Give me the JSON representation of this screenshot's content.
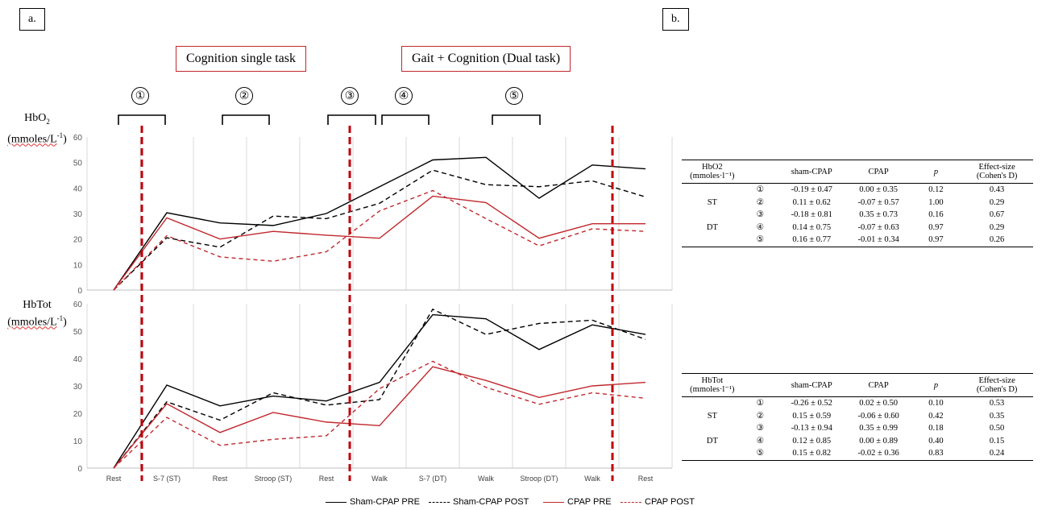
{
  "panels": {
    "a": "a.",
    "b": "b."
  },
  "boxes": {
    "single": "Cognition single task",
    "dual": "Gait + Cognition (Dual task)"
  },
  "phase_markers": [
    "①",
    "②",
    "③",
    "④",
    "⑤"
  ],
  "y_labels": {
    "top": {
      "line1": "HbO",
      "sub": "2",
      "line2": "(mmoles/L",
      "sup": "-1",
      "close": ")"
    },
    "bottom": {
      "line1": "HbTot",
      "line2": "(mmoles/L",
      "sup": "-1",
      "close": ")"
    }
  },
  "colors": {
    "sham": "#000000",
    "cpap": "#c0282d",
    "divider": "#c0000b",
    "grid": "#d9d9d9"
  },
  "chart_data": [
    {
      "type": "line",
      "categories": [
        "Rest",
        "S-7 (ST)",
        "Rest",
        "Stroop (ST)",
        "Rest",
        "Walk",
        "S-7 (DT)",
        "Walk",
        "Stroop (DT)",
        "Walk",
        "Rest"
      ],
      "ylim": [
        0,
        60
      ],
      "yticks": [
        0,
        10,
        20,
        30,
        40,
        50,
        60
      ],
      "series": [
        {
          "name": "Sham-CPAP PRE",
          "values": [
            0,
            30.3,
            26.3,
            25.3,
            30,
            40.5,
            51,
            52,
            36,
            49,
            47.5
          ]
        },
        {
          "name": "Sham-CPAP POST",
          "values": [
            0,
            20.5,
            16.8,
            29,
            28,
            34,
            47,
            41.3,
            40.5,
            42.8,
            36.5
          ]
        },
        {
          "name": "CPAP PRE",
          "values": [
            0,
            28.3,
            20,
            23,
            21.5,
            20.3,
            36.8,
            34.3,
            20.3,
            26,
            26
          ]
        },
        {
          "name": "CPAP POST",
          "values": [
            0,
            21.3,
            13,
            11.3,
            15,
            31,
            39,
            28,
            17.3,
            24,
            23
          ]
        }
      ]
    },
    {
      "type": "line",
      "categories": [
        "Rest",
        "S-7 (ST)",
        "Rest",
        "Stroop (ST)",
        "Rest",
        "Walk",
        "S-7 (DT)",
        "Walk",
        "Stroop (DT)",
        "Walk",
        "Rest"
      ],
      "ylim": [
        0,
        60
      ],
      "yticks": [
        0,
        10,
        20,
        30,
        40,
        50,
        60
      ],
      "series": [
        {
          "name": "Sham-CPAP PRE",
          "values": [
            0,
            30.3,
            22.7,
            26.3,
            24.5,
            31.3,
            56,
            54.5,
            43.3,
            52.3,
            48.8
          ]
        },
        {
          "name": "Sham-CPAP POST",
          "values": [
            0,
            24.2,
            17.5,
            27.5,
            23,
            25,
            58,
            48.8,
            52.8,
            54,
            47
          ]
        },
        {
          "name": "CPAP PRE",
          "values": [
            0,
            23.5,
            13,
            20.3,
            16.8,
            15.5,
            37,
            32,
            25.8,
            30,
            31.3
          ]
        },
        {
          "name": "CPAP POST",
          "values": [
            0,
            18.5,
            8.3,
            10.5,
            11.8,
            29,
            39,
            29.5,
            23.3,
            27.5,
            25.5
          ]
        }
      ]
    }
  ],
  "legend": [
    "Sham-CPAP PRE",
    "Sham-CPAP POST",
    "CPAP PRE",
    "CPAP POST"
  ],
  "tables": [
    {
      "header": [
        "HbO2",
        "(mmoles·l⁻¹)",
        "sham-CPAP",
        "CPAP",
        "p",
        "Effect-size",
        "(Cohen's D)"
      ],
      "rows": [
        {
          "group": "",
          "marker": "①",
          "sham": "-0.19 ± 0.47",
          "cpap": "0.00 ± 0.35",
          "p": "0.12",
          "es": "0.43"
        },
        {
          "group": "ST",
          "marker": "②",
          "sham": "0.11 ± 0.62",
          "cpap": "-0.07 ± 0.57",
          "p": "1.00",
          "es": "0.29"
        },
        {
          "group": "",
          "marker": "③",
          "sham": "-0.18 ± 0.81",
          "cpap": "0.35 ± 0.73",
          "p": "0.16",
          "es": "0.67"
        },
        {
          "group": "DT",
          "marker": "④",
          "sham": "0.14 ± 0.75",
          "cpap": "-0.07 ± 0.63",
          "p": "0.97",
          "es": "0.29"
        },
        {
          "group": "",
          "marker": "⑤",
          "sham": "0.16 ± 0.77",
          "cpap": "-0.01 ± 0.34",
          "p": "0.97",
          "es": "0.26"
        }
      ]
    },
    {
      "header": [
        "HbTot",
        "(mmoles·l⁻¹)",
        "sham-CPAP",
        "CPAP",
        "p",
        "Effect-size",
        "(Cohen's D)"
      ],
      "rows": [
        {
          "group": "",
          "marker": "①",
          "sham": "-0.26 ± 0.52",
          "cpap": "0.02 ± 0.50",
          "p": "0.10",
          "es": "0.53"
        },
        {
          "group": "ST",
          "marker": "②",
          "sham": "0.15 ± 0.59",
          "cpap": "-0.06 ± 0.60",
          "p": "0.42",
          "es": "0.35"
        },
        {
          "group": "",
          "marker": "③",
          "sham": "-0.13 ± 0.94",
          "cpap": "0.35 ± 0.99",
          "p": "0.18",
          "es": "0.50"
        },
        {
          "group": "DT",
          "marker": "④",
          "sham": "0.12 ± 0.85",
          "cpap": "0.00 ± 0.89",
          "p": "0.40",
          "es": "0.15"
        },
        {
          "group": "",
          "marker": "⑤",
          "sham": "0.15 ± 0.82",
          "cpap": "-0.02 ± 0.36",
          "p": "0.83",
          "es": "0.24"
        }
      ]
    }
  ]
}
